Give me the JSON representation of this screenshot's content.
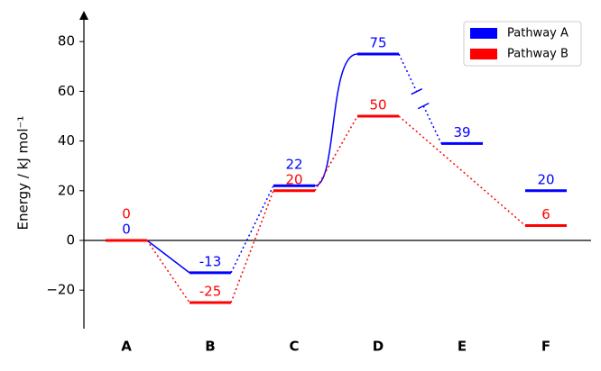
{
  "chart_data": {
    "type": "energy-profile",
    "ylabel": "Energy / kJ mol⁻¹",
    "categories": [
      "A",
      "B",
      "C",
      "D",
      "E",
      "F"
    ],
    "series": [
      {
        "name": "Pathway A",
        "color": "#0000ff",
        "values": [
          0,
          -13,
          22,
          75,
          39,
          20
        ]
      },
      {
        "name": "Pathway B",
        "color": "#ff0000",
        "values": [
          0,
          -25,
          20,
          50,
          null,
          6
        ]
      }
    ],
    "ylim": [
      -35,
      90
    ],
    "yticks": [
      {
        "value": -20,
        "label": "−20"
      },
      0,
      20,
      40,
      60,
      80
    ],
    "legend": "upper right"
  }
}
